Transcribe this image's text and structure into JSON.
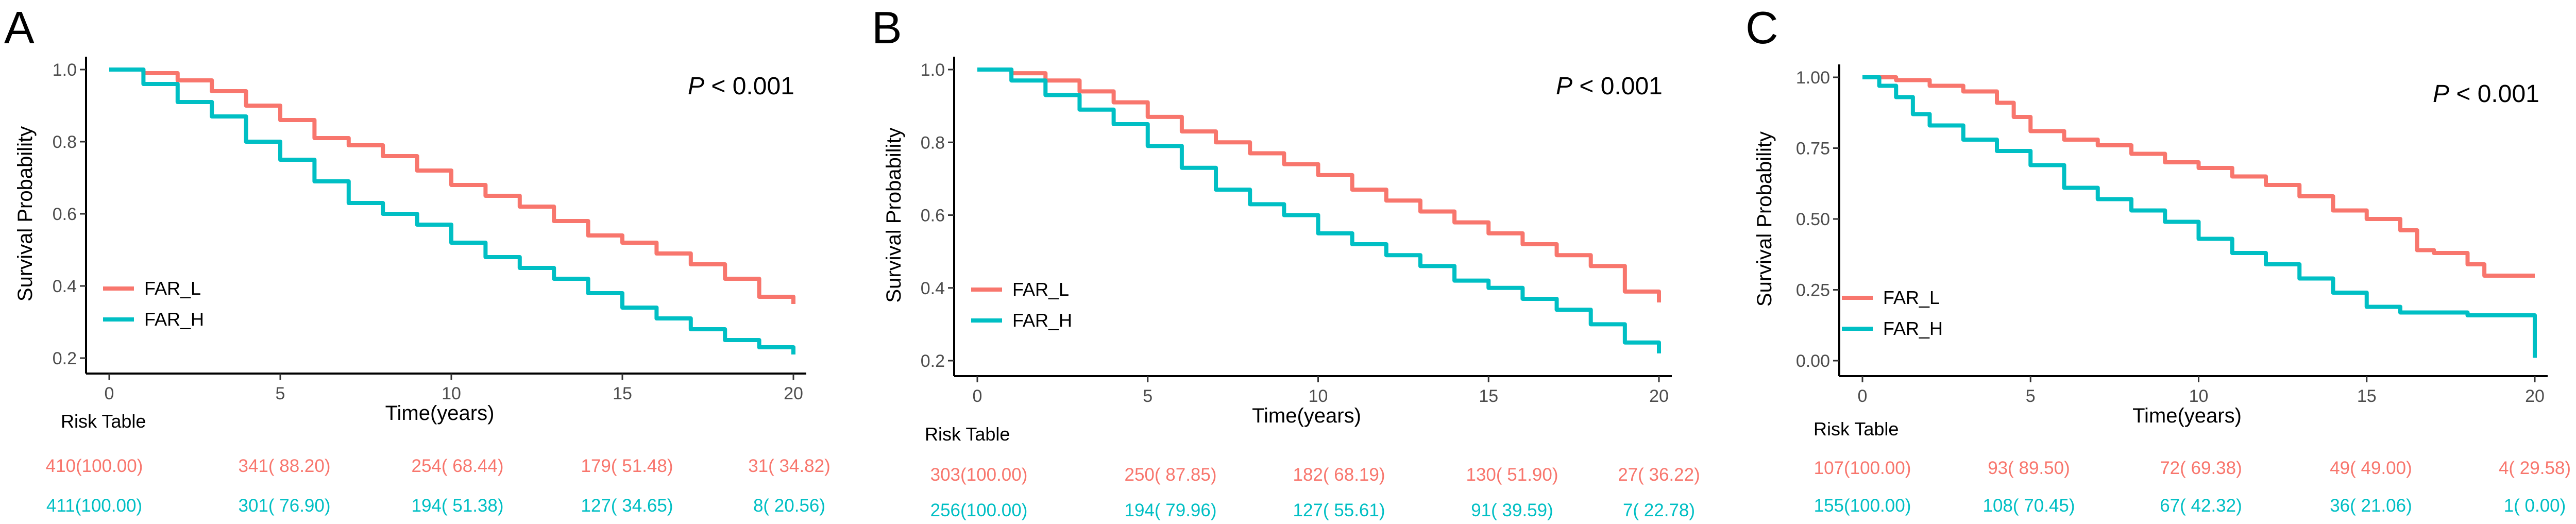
{
  "colors": {
    "FAR_L": "#F8766D",
    "FAR_H": "#00BFC4"
  },
  "chart_data": [
    {
      "type": "line",
      "panel_label": "A",
      "title": "",
      "xlabel": "Time(years)",
      "ylabel": "Survival Probability",
      "xlim": [
        0,
        20
      ],
      "ylim": [
        0.2,
        1.0
      ],
      "xticks": [
        0,
        5,
        10,
        15,
        20
      ],
      "xtick_labels": [
        "0",
        "5",
        "10",
        "15",
        "20"
      ],
      "yticks": [
        0.2,
        0.4,
        0.6,
        0.8,
        1.0
      ],
      "ytick_labels": [
        "0.2",
        "0.4",
        "0.6",
        "0.8",
        "1.0"
      ],
      "p_value_prefix": "P",
      "p_value_rest": " < 0.001",
      "legend_position": "bottom-left",
      "series": [
        {
          "name": "FAR_L",
          "x": [
            0,
            1,
            2,
            3,
            4,
            5,
            6,
            7,
            8,
            9,
            10,
            11,
            12,
            13,
            14,
            15,
            16,
            17,
            18,
            19,
            20
          ],
          "y": [
            1.0,
            0.99,
            0.97,
            0.94,
            0.9,
            0.86,
            0.81,
            0.79,
            0.76,
            0.72,
            0.68,
            0.65,
            0.62,
            0.58,
            0.54,
            0.52,
            0.49,
            0.46,
            0.42,
            0.37,
            0.35
          ]
        },
        {
          "name": "FAR_H",
          "x": [
            0,
            1,
            2,
            3,
            4,
            5,
            6,
            7,
            8,
            9,
            10,
            11,
            12,
            13,
            14,
            15,
            16,
            17,
            18,
            19,
            20
          ],
          "y": [
            1.0,
            0.96,
            0.91,
            0.87,
            0.8,
            0.75,
            0.69,
            0.63,
            0.6,
            0.57,
            0.52,
            0.48,
            0.45,
            0.42,
            0.38,
            0.34,
            0.31,
            0.28,
            0.25,
            0.23,
            0.21
          ]
        }
      ],
      "risk_table": {
        "title": "Risk Table",
        "rows": [
          {
            "group": "FAR_L",
            "cells": [
              "410(100.00)",
              "341( 88.20)",
              "254( 68.44)",
              "179( 51.48)",
              "31( 34.82)"
            ]
          },
          {
            "group": "FAR_H",
            "cells": [
              "411(100.00)",
              "301( 76.90)",
              "194( 51.38)",
              "127( 34.65)",
              "8( 20.56)"
            ]
          }
        ]
      }
    },
    {
      "type": "line",
      "panel_label": "B",
      "title": "",
      "xlabel": "Time(years)",
      "ylabel": "Survival Probability",
      "xlim": [
        0,
        20
      ],
      "ylim": [
        0.2,
        1.0
      ],
      "xticks": [
        0,
        5,
        10,
        15,
        20
      ],
      "xtick_labels": [
        "0",
        "5",
        "10",
        "15",
        "20"
      ],
      "yticks": [
        0.2,
        0.4,
        0.6,
        0.8,
        1.0
      ],
      "ytick_labels": [
        "0.2",
        "0.4",
        "0.6",
        "0.8",
        "1.0"
      ],
      "p_value_prefix": "P",
      "p_value_rest": " < 0.001",
      "legend_position": "bottom-left",
      "series": [
        {
          "name": "FAR_L",
          "x": [
            0,
            1,
            2,
            3,
            4,
            5,
            6,
            7,
            8,
            9,
            10,
            11,
            12,
            13,
            14,
            15,
            16,
            17,
            18,
            19,
            20
          ],
          "y": [
            1.0,
            0.99,
            0.97,
            0.94,
            0.91,
            0.87,
            0.83,
            0.8,
            0.77,
            0.74,
            0.71,
            0.67,
            0.64,
            0.61,
            0.58,
            0.55,
            0.52,
            0.49,
            0.46,
            0.39,
            0.36
          ]
        },
        {
          "name": "FAR_H",
          "x": [
            0,
            1,
            2,
            3,
            4,
            5,
            6,
            7,
            8,
            9,
            10,
            11,
            12,
            13,
            14,
            15,
            16,
            17,
            18,
            19,
            20
          ],
          "y": [
            1.0,
            0.97,
            0.93,
            0.89,
            0.85,
            0.79,
            0.73,
            0.67,
            0.63,
            0.6,
            0.55,
            0.52,
            0.49,
            0.46,
            0.42,
            0.4,
            0.37,
            0.34,
            0.3,
            0.25,
            0.22
          ]
        }
      ],
      "risk_table": {
        "title": "Risk Table",
        "rows": [
          {
            "group": "FAR_L",
            "cells": [
              "303(100.00)",
              "250( 87.85)",
              "182( 68.19)",
              "130( 51.90)",
              "27( 36.22)"
            ]
          },
          {
            "group": "FAR_H",
            "cells": [
              "256(100.00)",
              "194( 79.96)",
              "127( 55.61)",
              "91( 39.59)",
              "7( 22.78)"
            ]
          }
        ]
      }
    },
    {
      "type": "line",
      "panel_label": "C",
      "title": "",
      "xlabel": "Time(years)",
      "ylabel": "Survival Probability",
      "xlim": [
        0,
        20
      ],
      "ylim": [
        0.0,
        1.0
      ],
      "xticks": [
        0,
        5,
        10,
        15,
        20
      ],
      "xtick_labels": [
        "0",
        "5",
        "10",
        "15",
        "20"
      ],
      "yticks": [
        0.0,
        0.25,
        0.5,
        0.75,
        1.0
      ],
      "ytick_labels": [
        "0.00",
        "0.25",
        "0.50",
        "0.75",
        "1.00"
      ],
      "p_value_prefix": "P",
      "p_value_rest": " < 0.001",
      "legend_position": "bottom-left",
      "series": [
        {
          "name": "FAR_L",
          "x": [
            0,
            1,
            2,
            3,
            4,
            4.5,
            5,
            6,
            7,
            8,
            9,
            10,
            11,
            12,
            13,
            14,
            15,
            16,
            16.5,
            17,
            18,
            18.5,
            19,
            20
          ],
          "y": [
            1.0,
            0.99,
            0.97,
            0.95,
            0.91,
            0.86,
            0.81,
            0.78,
            0.76,
            0.73,
            0.7,
            0.68,
            0.65,
            0.62,
            0.58,
            0.53,
            0.5,
            0.46,
            0.39,
            0.38,
            0.34,
            0.3,
            0.3,
            0.3
          ]
        },
        {
          "name": "FAR_H",
          "x": [
            0,
            0.5,
            1,
            1.5,
            2,
            3,
            4,
            5,
            6,
            7,
            8,
            9,
            10,
            11,
            12,
            13,
            14,
            15,
            16,
            17,
            18,
            19,
            19.9,
            20
          ],
          "y": [
            1.0,
            0.97,
            0.93,
            0.87,
            0.83,
            0.78,
            0.74,
            0.69,
            0.61,
            0.57,
            0.53,
            0.49,
            0.43,
            0.38,
            0.34,
            0.29,
            0.24,
            0.19,
            0.17,
            0.17,
            0.16,
            0.16,
            0.16,
            0.01
          ]
        }
      ],
      "risk_table": {
        "title": "Risk Table",
        "rows": [
          {
            "group": "FAR_L",
            "cells": [
              "107(100.00)",
              "93( 89.50)",
              "72( 69.38)",
              "49( 49.00)",
              "4( 29.58)"
            ]
          },
          {
            "group": "FAR_H",
            "cells": [
              "155(100.00)",
              "108( 70.45)",
              "67( 42.32)",
              "36( 21.06)",
              "1( 0.00)"
            ]
          }
        ]
      }
    }
  ]
}
